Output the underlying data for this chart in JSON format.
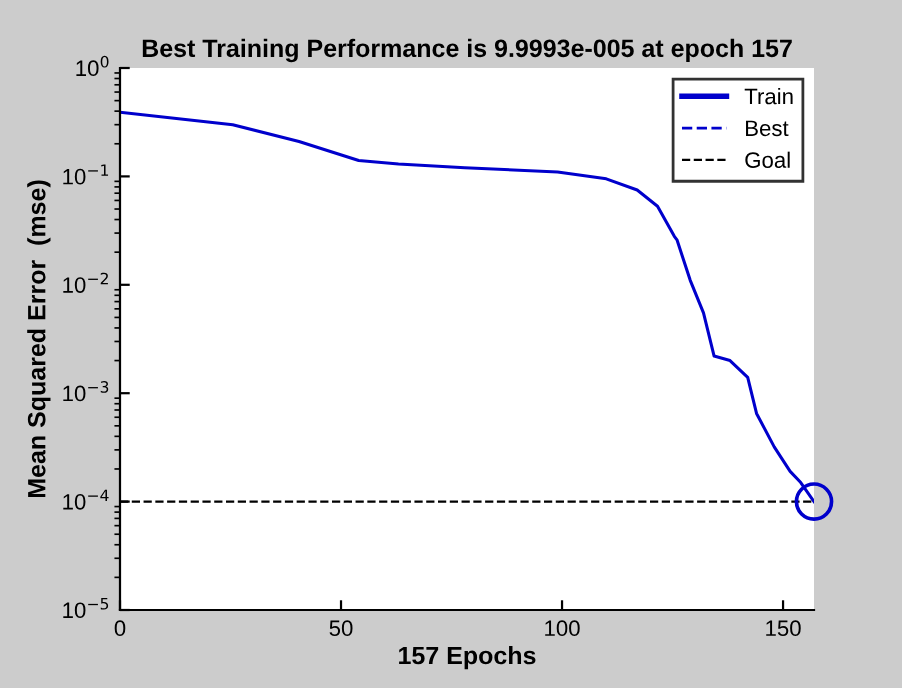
{
  "chart_data": {
    "type": "line",
    "title": "Best Training Performance is 9.9993e-005 at epoch 157",
    "xlabel": "157 Epochs",
    "ylabel": "Mean Squared Error  (mse)",
    "series": [
      {
        "name": "Train",
        "color": "#0000cc",
        "line_style": "solid",
        "x": [
          0,
          25.5,
          40.5,
          54,
          63,
          78,
          99,
          110,
          117,
          121.6,
          125.4,
          126,
          129,
          132,
          134.4,
          138,
          142,
          144,
          148,
          151.6,
          154,
          157
        ],
        "values": [
          0.39,
          0.3,
          0.21,
          0.14,
          0.13,
          0.12,
          0.11,
          0.095,
          0.075,
          0.053,
          0.028,
          0.026,
          0.011,
          0.0055,
          0.0022,
          0.002,
          0.0014,
          0.00065,
          0.00032,
          0.00019,
          0.00015,
          9.9993e-05
        ]
      },
      {
        "name": "Best",
        "color": "#0000cc",
        "type": "scatter",
        "marker": "circle",
        "line_style": "dashed",
        "x": [
          157
        ],
        "values": [
          9.9993e-05
        ]
      }
    ],
    "ref_lines": [
      {
        "axis": "y",
        "value": 0.0001,
        "label": "Goal",
        "color": "#000000",
        "line_style": "dashed"
      }
    ],
    "log": "y",
    "xlim": [
      0,
      157
    ],
    "ylim": [
      1e-05,
      1
    ],
    "xticks": [
      0,
      50,
      100,
      150
    ],
    "yticks": [
      {
        "value": 1,
        "label": "10$^{0}$"
      },
      {
        "value": 0.1,
        "label": "10$^{−1}$"
      },
      {
        "value": 0.01,
        "label": "10$^{−2}$"
      },
      {
        "value": 0.001,
        "label": "10$^{−3}$"
      },
      {
        "value": 0.0001,
        "label": "10$^{−4}$"
      },
      {
        "value": 1e-05,
        "label": "10$^{−5}$"
      }
    ],
    "grid": false,
    "legend": "top right"
  }
}
